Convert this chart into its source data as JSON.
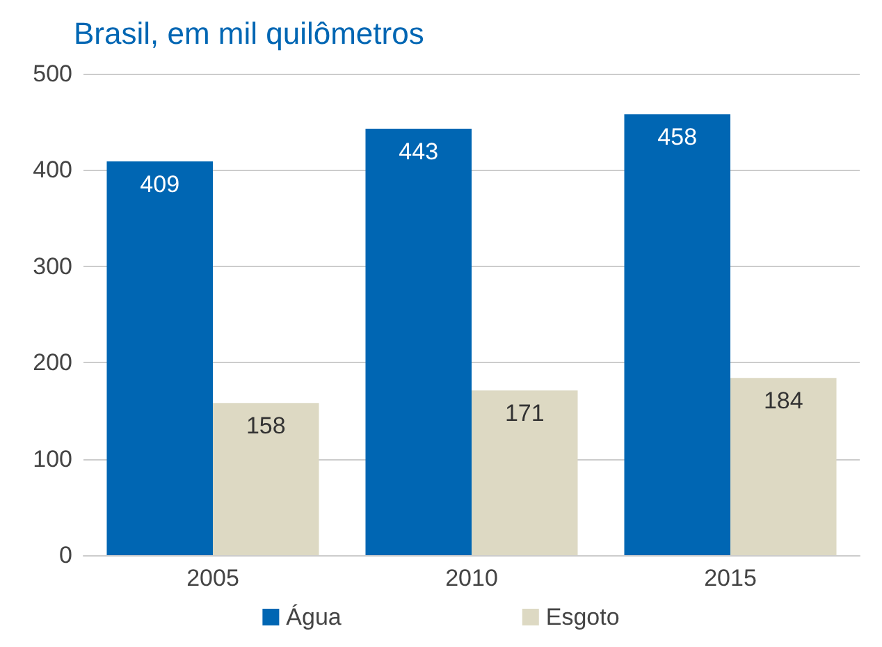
{
  "chart_data": {
    "type": "bar",
    "title": "Brasil, em mil quilômetros",
    "categories": [
      "2005",
      "2010",
      "2015"
    ],
    "series": [
      {
        "name": "Água",
        "color": "#0066b3",
        "values": [
          409,
          443,
          458
        ]
      },
      {
        "name": "Esgoto",
        "color": "#ddd9c3",
        "values": [
          158,
          171,
          184
        ]
      }
    ],
    "ylim": [
      0,
      500
    ],
    "yticks": [
      0,
      100,
      200,
      300,
      400,
      500
    ],
    "grid": "y",
    "legend": "bottom",
    "data_labels": true
  }
}
